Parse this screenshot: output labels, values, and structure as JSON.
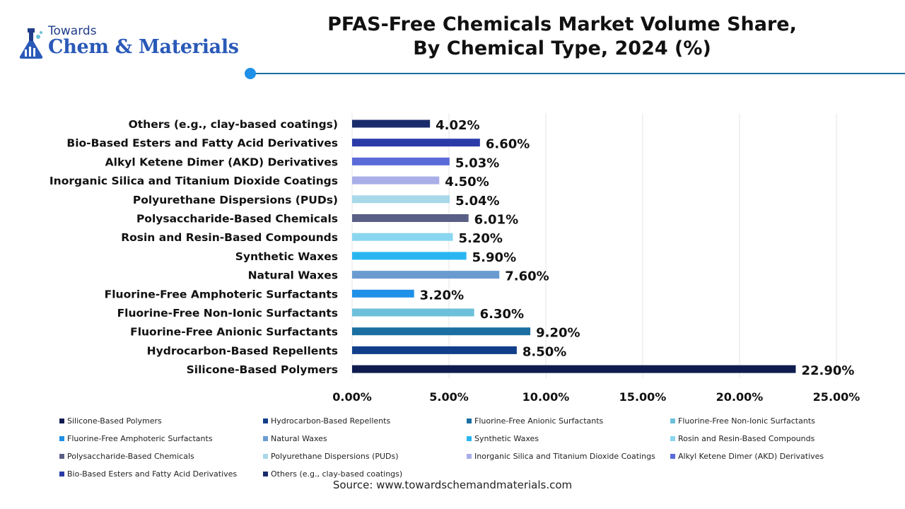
{
  "brand": {
    "top": "Towards",
    "main": "Chem & Materials"
  },
  "title_line1": "PFAS-Free Chemicals Market Volume Share,",
  "title_line2": "By Chemical Type, 2024 (%)",
  "source": "Source: www.towardschemandmaterials.com",
  "chart_data": {
    "type": "bar",
    "orientation": "horizontal",
    "categories": [
      "Others (e.g., clay-based coatings)",
      "Bio-Based Esters and Fatty Acid Derivatives",
      "Alkyl Ketene Dimer (AKD) Derivatives",
      "Inorganic Silica and Titanium Dioxide Coatings",
      "Polyurethane Dispersions (PUDs)",
      "Polysaccharide-Based Chemicals",
      "Rosin and Resin-Based Compounds",
      "Synthetic Waxes",
      "Natural Waxes",
      "Fluorine-Free Amphoteric Surfactants",
      "Fluorine-Free Non-Ionic Surfactants",
      "Fluorine-Free Anionic Surfactants",
      "Hydrocarbon-Based Repellents",
      "Silicone-Based Polymers"
    ],
    "values": [
      4.02,
      6.6,
      5.03,
      4.5,
      5.04,
      6.01,
      5.2,
      5.9,
      7.6,
      3.2,
      6.3,
      9.2,
      8.5,
      22.9
    ],
    "value_labels": [
      "4.02%",
      "6.60%",
      "5.03%",
      "4.50%",
      "5.04%",
      "6.01%",
      "5.20%",
      "5.90%",
      "7.60%",
      "3.20%",
      "6.30%",
      "9.20%",
      "8.50%",
      "22.90%"
    ],
    "colors": [
      "#1a2b6b",
      "#2a3aa8",
      "#5a6ad8",
      "#a9aee8",
      "#a8d8ea",
      "#5a5f85",
      "#8ad6f0",
      "#29b6f0",
      "#6a9bd0",
      "#1e90e8",
      "#6cc0da",
      "#1a6fa0",
      "#123f8a",
      "#0f1c4f"
    ],
    "xlim": [
      0,
      25
    ],
    "x_ticks": [
      "0.00%",
      "5.00%",
      "10.00%",
      "15.00%",
      "20.00%",
      "25.00%"
    ],
    "grid": true,
    "legend_position": "bottom",
    "legend": [
      {
        "label": "Silicone-Based Polymers",
        "color": "#0f1c4f"
      },
      {
        "label": "Hydrocarbon-Based Repellents",
        "color": "#123f8a"
      },
      {
        "label": "Fluorine-Free Anionic Surfactants",
        "color": "#1a6fa0"
      },
      {
        "label": "Fluorine-Free Non-Ionic Surfactants",
        "color": "#6cc0da"
      },
      {
        "label": "Fluorine-Free Amphoteric Surfactants",
        "color": "#1e90e8"
      },
      {
        "label": "Natural Waxes",
        "color": "#6a9bd0"
      },
      {
        "label": "Synthetic Waxes",
        "color": "#29b6f0"
      },
      {
        "label": "Rosin and Resin-Based Compounds",
        "color": "#8ad6f0"
      },
      {
        "label": "Polysaccharide-Based Chemicals",
        "color": "#5a5f85"
      },
      {
        "label": "Polyurethane Dispersions (PUDs)",
        "color": "#a8d8ea"
      },
      {
        "label": "Inorganic Silica and Titanium Dioxide Coatings",
        "color": "#a9aee8"
      },
      {
        "label": "Alkyl Ketene Dimer (AKD) Derivatives",
        "color": "#5a6ad8"
      },
      {
        "label": "Bio-Based Esters and Fatty Acid Derivatives",
        "color": "#2a3aa8"
      },
      {
        "label": "Others (e.g., clay-based coatings)",
        "color": "#1a2b6b"
      }
    ]
  }
}
